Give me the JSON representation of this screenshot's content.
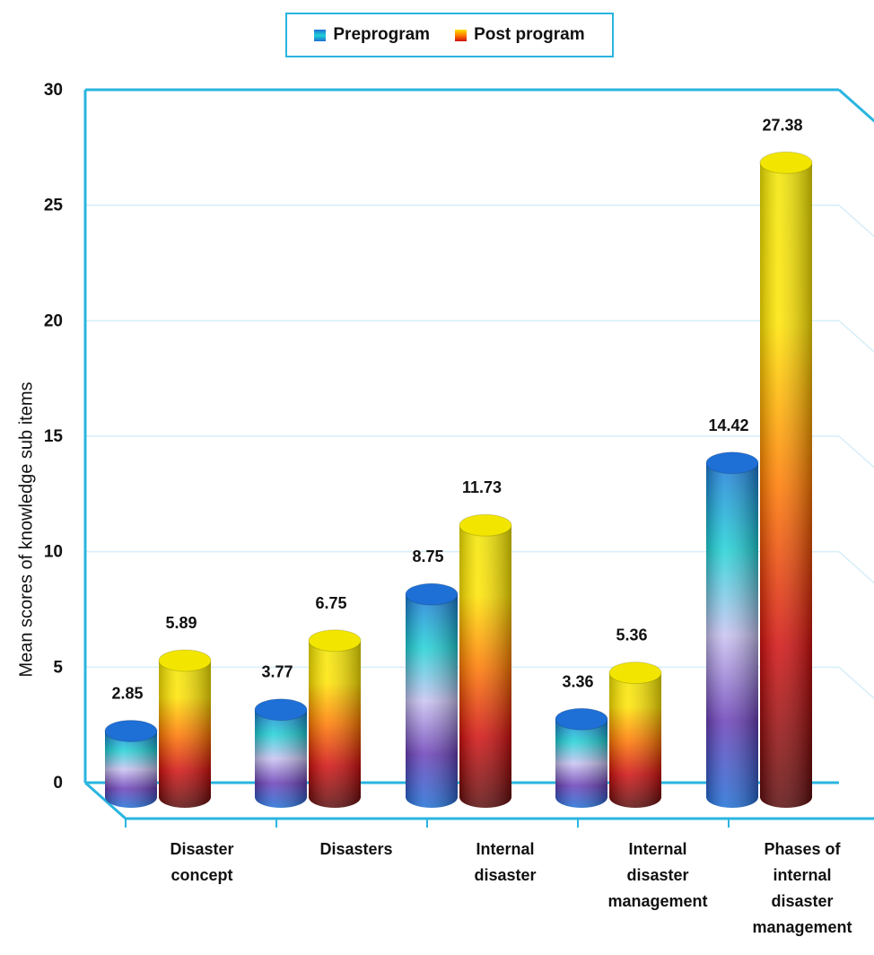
{
  "chart_data": {
    "type": "bar",
    "title": "",
    "xlabel": "",
    "ylabel": "Mean scores of knowledge sub items",
    "ylim": [
      0,
      30
    ],
    "yticks": [
      "0",
      "5",
      "10",
      "15",
      "20",
      "25",
      "30"
    ],
    "grid": true,
    "legend_position": "top-center",
    "categories": [
      "Disaster\nconcept",
      "Disasters",
      "Internal\ndisaster",
      "Internal\ndisaster\nmanagement",
      "Phases of\ninternal\ndisaster\nmanagement"
    ],
    "series": [
      {
        "name": "Preprogram",
        "values": [
          2.85,
          3.77,
          8.75,
          3.36,
          14.42
        ],
        "labels": [
          "2.85",
          "3.77",
          "8.75",
          "3.36",
          "14.42"
        ]
      },
      {
        "name": "Post program",
        "values": [
          5.89,
          6.75,
          11.73,
          5.36,
          27.38
        ],
        "labels": [
          "5.89",
          "6.75",
          "11.73",
          "5.36",
          "27.38"
        ]
      }
    ]
  },
  "colors": {
    "frame": "#29b5e0",
    "gridline": "#d6eef8",
    "pre_gradient": [
      "#1e6fd6",
      "#6a3fb8",
      "#c9c2f2",
      "#1fd1d6",
      "#1e7ad8"
    ],
    "post_gradient": [
      "#5a0c0c",
      "#d10f0f",
      "#ff7a00",
      "#ffe400",
      "#f2e600"
    ]
  }
}
